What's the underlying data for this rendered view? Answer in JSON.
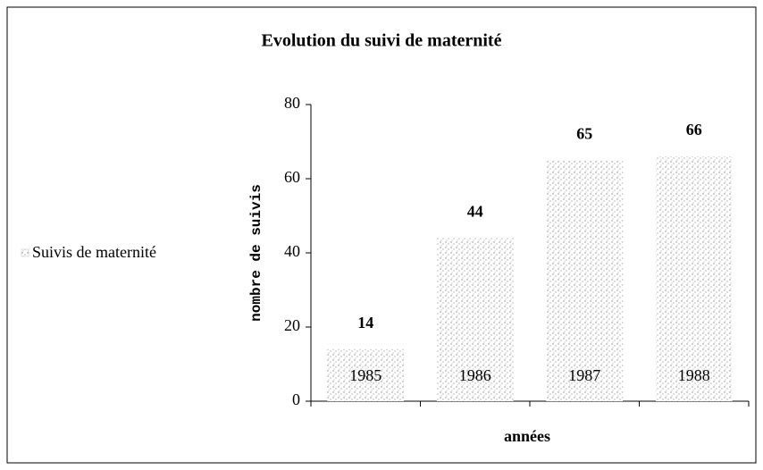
{
  "chart_data": {
    "type": "bar",
    "title": "Evolution du suivi de maternité",
    "x_label": "années",
    "y_label": "nombre de suivis",
    "categories": [
      "1985",
      "1986",
      "1987",
      "1988"
    ],
    "series": [
      {
        "name": "Suivis de maternité",
        "color": "#8c8c8c",
        "values": [
          14,
          44,
          65,
          66
        ]
      }
    ],
    "ylim": [
      0,
      80
    ],
    "yticks": [
      0,
      20,
      40,
      60,
      80
    ],
    "legend": "left"
  }
}
